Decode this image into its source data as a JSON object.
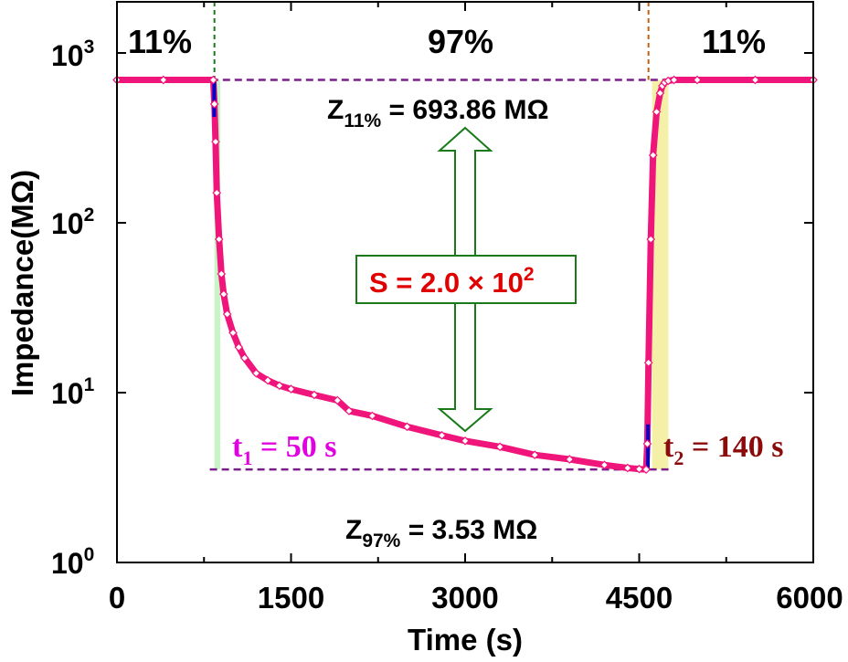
{
  "chart_data": {
    "type": "line",
    "title": "",
    "xlabel": "Time (s)",
    "ylabel": "Impedance(MΩ)",
    "x_scale": "linear",
    "y_scale": "log",
    "xlim": [
      0,
      6000
    ],
    "ylim": [
      1,
      2000
    ],
    "x_ticks": [
      0,
      1500,
      3000,
      4500,
      6000
    ],
    "x_tick_labels": [
      "0",
      "1500",
      "3000",
      "4500",
      "6000"
    ],
    "y_ticks": [
      1,
      10,
      100,
      1000
    ],
    "y_tick_labels": [
      {
        "base": "10",
        "exp": "0"
      },
      {
        "base": "10",
        "exp": "1"
      },
      {
        "base": "10",
        "exp": "2"
      },
      {
        "base": "10",
        "exp": "3"
      }
    ],
    "grid": false,
    "series": [
      {
        "name": "",
        "color": "#f0157a",
        "x": [
          0,
          400,
          830,
          840,
          850,
          860,
          880,
          900,
          920,
          950,
          1000,
          1050,
          1100,
          1200,
          1300,
          1400,
          1500,
          1700,
          1900,
          2000,
          2200,
          2500,
          2800,
          3000,
          3300,
          3600,
          3900,
          4200,
          4400,
          4500,
          4560,
          4570,
          4580,
          4600,
          4620,
          4650,
          4680,
          4700,
          4720,
          4750,
          4800,
          5000,
          5500,
          6000
        ],
        "y": [
          693.86,
          693.86,
          693.86,
          500,
          300,
          150,
          80,
          50,
          38,
          29,
          22.5,
          18.5,
          16,
          13,
          11.8,
          11,
          10.5,
          9.7,
          9,
          7.8,
          7.3,
          6.3,
          5.6,
          5.2,
          4.8,
          4.3,
          4.05,
          3.75,
          3.6,
          3.55,
          3.53,
          5,
          15,
          80,
          250,
          450,
          580,
          640,
          670,
          685,
          693.86,
          693.86,
          693.86,
          693.86
        ]
      }
    ],
    "humidity_labels": [
      "11%",
      "97%",
      "11%"
    ],
    "humidity_switch_times": [
      840,
      4580
    ],
    "reference_levels": [
      693.86,
      3.53
    ],
    "response_window": [
      840,
      890
    ],
    "recovery_window": [
      4580,
      4720
    ],
    "annotations": {
      "z11": {
        "base": "Z",
        "sub": "11%",
        "rest": " = 693.86 MΩ"
      },
      "z97": {
        "base": "Z",
        "sub": "97%",
        "rest": " = 3.53 MΩ"
      },
      "sensitivity": {
        "text": "S = 2.0 × 10",
        "sup": "2"
      },
      "t1": {
        "base": "t",
        "sub": "1",
        "rest": " = 50 s"
      },
      "t2": {
        "base": "t",
        "sub": "2",
        "rest": " = 140 s"
      }
    },
    "colors": {
      "series": "#f0157a",
      "response": "#0000cc",
      "reference_line": "#7a1f8a",
      "arrow": "#1a7a1a",
      "sensitivity_text": "#e00000",
      "t1": "#e000e0",
      "t2": "#8b0a0a",
      "response_window_fill": "#c8f5c8",
      "recovery_window_fill": "#f5f0a8"
    }
  }
}
